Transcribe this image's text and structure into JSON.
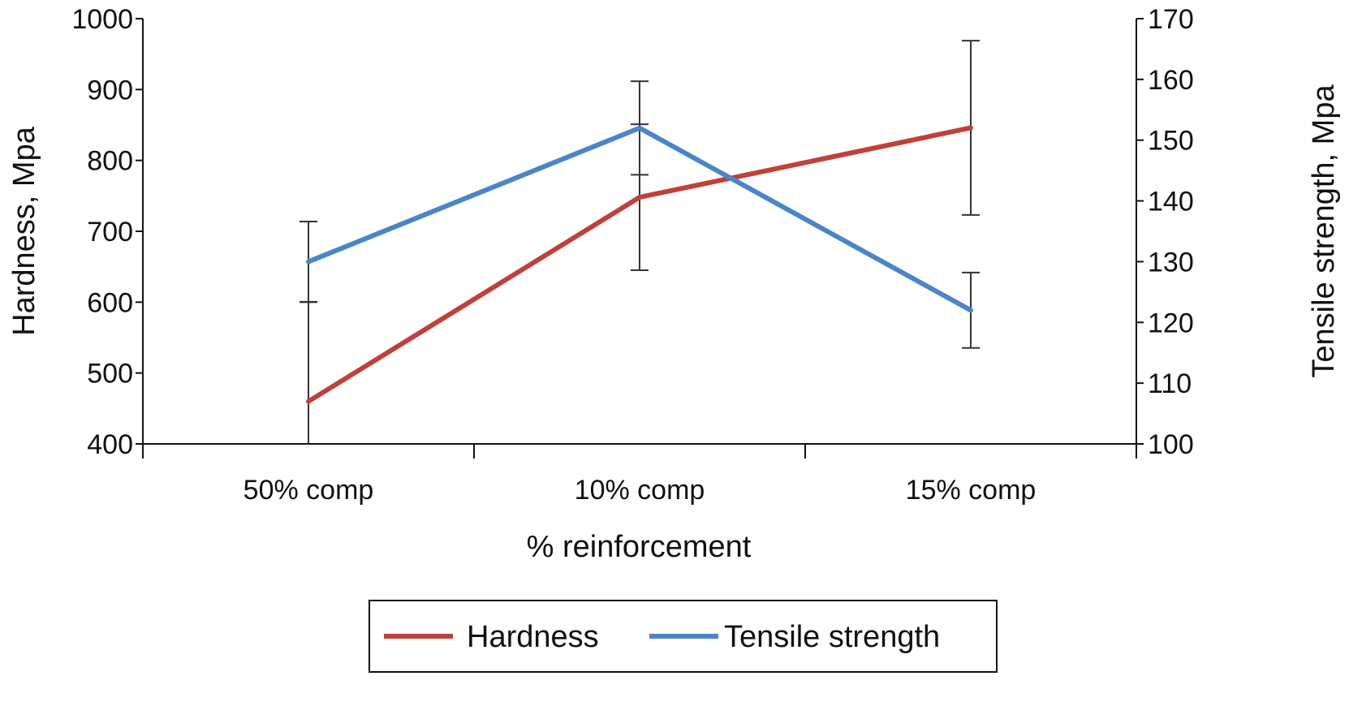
{
  "chart_data": {
    "type": "line",
    "title": "",
    "xlabel": "% reinforcement",
    "ylabel": "Hardness, Mpa",
    "y2label": "Tensile strength, Mpa",
    "categories": [
      "50% comp",
      "10% comp",
      "15% comp"
    ],
    "ylim": [
      400,
      1000
    ],
    "y2lim": [
      100,
      170
    ],
    "yticks": [
      400,
      500,
      600,
      700,
      800,
      900,
      1000
    ],
    "y2ticks": [
      100,
      110,
      120,
      130,
      140,
      150,
      160,
      170
    ],
    "grid": false,
    "legend_position": "bottom",
    "series": [
      {
        "name": "Hardness",
        "axis": "left",
        "color": "#c0413b",
        "values": [
          460,
          748,
          846
        ],
        "errors": [
          140,
          103,
          123
        ]
      },
      {
        "name": "Tensile strength",
        "axis": "right",
        "color": "#4a85c8",
        "values": [
          130,
          152,
          122
        ],
        "errors": [
          6.6,
          7.7,
          6.2
        ]
      }
    ]
  }
}
